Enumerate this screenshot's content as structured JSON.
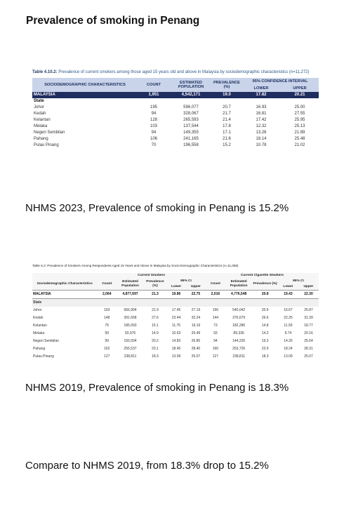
{
  "page": {
    "heading": "Prevalence of smoking in Penang",
    "note_2023": "NHMS 2023, Prevalence of smoking in Penang is 15.2%",
    "note_2019": "NHMS 2019, Prevalence of smoking in Penang is 18.3%",
    "compare": "Compare to NHMS 2019, from 18.3% drop to 15.2%"
  },
  "table1": {
    "caption_label": "Table 4.10.2:",
    "caption_text": "Prevalence of current smokers among those aged 15 years old and above in Malaysia by sociodemographic characteristics (n=11,272)",
    "headers": {
      "characteristics": "SOCIODEMOGRAPHIC CHARACTERISTICS",
      "count": "COUNT",
      "population": "ESTIMATED POPULATION",
      "prevalence": "PREVALENCE (%)",
      "ci": "95% CONFIDENCE INTERVAL",
      "lower": "LOWER",
      "upper": "UPPER"
    },
    "malaysia": [
      "MALAYSIA",
      "1,951",
      "4,542,171",
      "19.0",
      "17.82",
      "20.21"
    ],
    "state_label": "State",
    "rows": [
      [
        "Johor",
        "195",
        "596,077",
        "20.7",
        "16.93",
        "25.00"
      ],
      [
        "Kedah",
        "94",
        "328,067",
        "21.7",
        "16.81",
        "27.55"
      ],
      [
        "Kelantan",
        "128",
        "265,593",
        "21.4",
        "17.42",
        "25.95"
      ],
      [
        "Melaka",
        "103",
        "137,544",
        "17.8",
        "12.32",
        "25.13"
      ],
      [
        "Negeri Sembilan",
        "94",
        "149,355",
        "17.1",
        "13.26",
        "21.89"
      ],
      [
        "Pahang",
        "106",
        "241,165",
        "21.6",
        "18.14",
        "25.48"
      ],
      [
        "Pulau Pinang",
        "70",
        "196,558",
        "15.2",
        "10.78",
        "21.02"
      ]
    ]
  },
  "table2": {
    "caption": "Table 6.2: Prevalence of Smokers Among Respondents Aged 15 Years and Above in Malaysia by Socio-Demographic Characteristics (n=11,058)",
    "headers": {
      "characteristics": "Sociodemographic Characteristics",
      "group1": "Current Smokers",
      "group2": "Current Cigarette Smokers",
      "count": "Count",
      "population": "Estimated Population",
      "prevalence": "Prevalence (%)",
      "ci": "95% CI",
      "lower": "Lower",
      "upper": "Upper"
    },
    "malaysia": [
      "MALAYSIA",
      "2,064",
      "4,877,697",
      "21.3",
      "19.86",
      "22.75",
      "2,016",
      "4,776,548",
      "20.8",
      "19.43",
      "22.30"
    ],
    "state_label": "State",
    "rows": [
      [
        "Johor",
        "163",
        "566,904",
        "21.9",
        "17.45",
        "27.19",
        "156",
        "540,042",
        "20.9",
        "16.67",
        "25.87"
      ],
      [
        "Kedah",
        "148",
        "391,658",
        "27.6",
        "23.44",
        "32.24",
        "144",
        "376,679",
        "26.6",
        "22.25",
        "31.39"
      ],
      [
        "Kelantan",
        "75",
        "185,093",
        "15.1",
        "11.75",
        "19.19",
        "73",
        "182,286",
        "14.8",
        "11.59",
        "18.77"
      ],
      [
        "Melaka",
        "99",
        "93,976",
        "14.9",
        "10.63",
        "20.49",
        "93",
        "89,336",
        "14.2",
        "9.74",
        "20.16"
      ],
      [
        "Negeri Sembilan",
        "99",
        "150,934",
        "20.2",
        "14.83",
        "26.85",
        "94",
        "144,226",
        "19.3",
        "14.26",
        "25.64"
      ],
      [
        "Pahang",
        "162",
        "255,537",
        "23.1",
        "18.45",
        "28.40",
        "160",
        "253,726",
        "22.9",
        "18.24",
        "28.31"
      ],
      [
        "Pulau Pinang",
        "127",
        "238,811",
        "18.3",
        "13.09",
        "25.07",
        "127",
        "238,811",
        "18.3",
        "13.09",
        "25.07"
      ]
    ]
  }
}
